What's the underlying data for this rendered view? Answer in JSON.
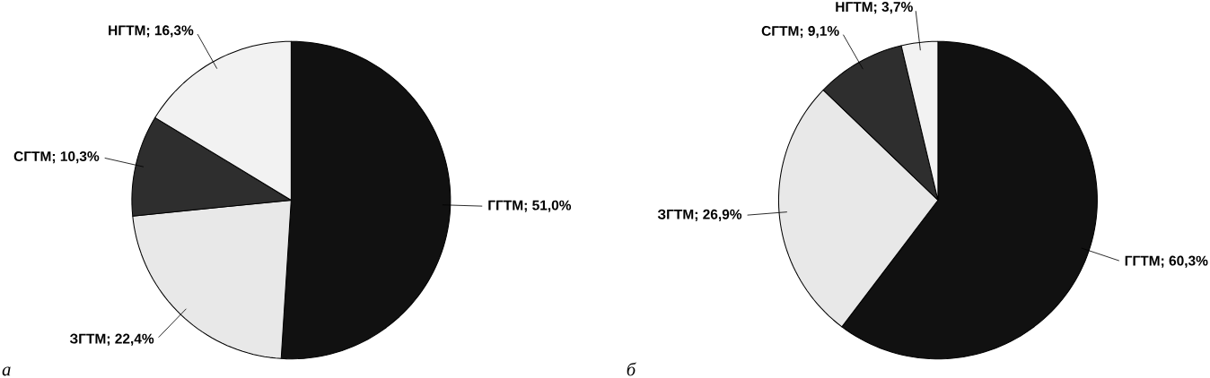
{
  "chart_data": [
    {
      "type": "pie",
      "categories": [
        "ГГТМ; 51,0%",
        "ЗГТМ; 22,4%",
        "СГТМ; 10,3%",
        "НГТМ; 16,3%"
      ],
      "values": [
        51.0,
        22.4,
        10.3,
        16.3
      ],
      "colors": [
        "#111111",
        "#e8e8e8",
        "#2e2e2e",
        "#f2f2f2"
      ],
      "annotations": [
        "а"
      ]
    },
    {
      "type": "pie",
      "categories": [
        "ГГТМ; 60,3%",
        "ЗГТМ; 26,9%",
        "СГТМ; 9,1%",
        "НГТМ; 3,7%"
      ],
      "values": [
        60.3,
        26.9,
        9.1,
        3.7
      ],
      "colors": [
        "#111111",
        "#e8e8e8",
        "#2e2e2e",
        "#f2f2f2"
      ],
      "annotations": [
        "б"
      ]
    }
  ]
}
